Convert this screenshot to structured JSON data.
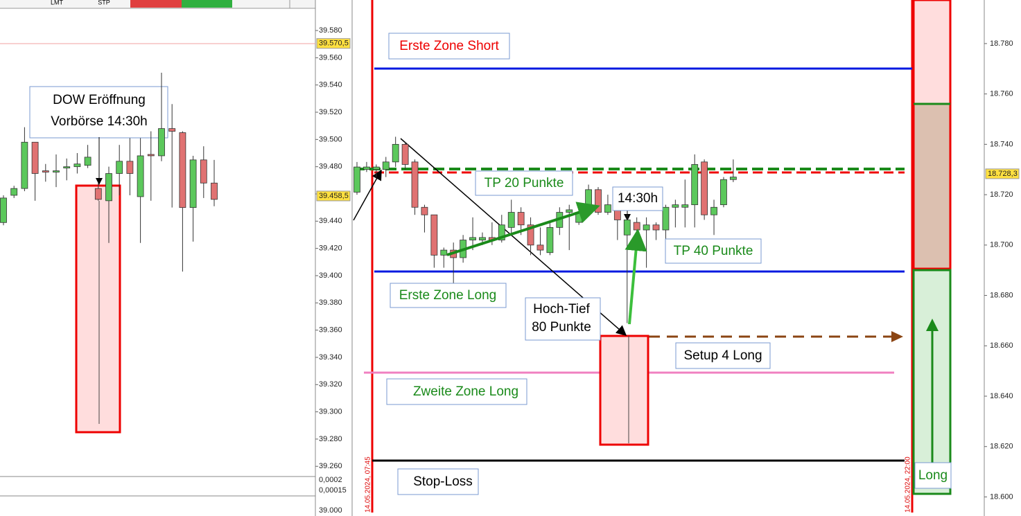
{
  "toolbar": {
    "labels": [
      "LMT",
      "STP"
    ]
  },
  "chart_data": [
    {
      "type": "candlestick",
      "ylim": [
        39.2525,
        39.6024
      ],
      "yticks": [
        {
          "value": 39.58,
          "label": "39.580"
        },
        {
          "value": 39.56,
          "label": "39.560"
        },
        {
          "value": 39.54,
          "label": "39.540"
        },
        {
          "value": 39.52,
          "label": "39.520"
        },
        {
          "value": 39.5,
          "label": "39.500"
        },
        {
          "value": 39.48,
          "label": "39.480"
        },
        {
          "value": 39.46,
          "label": "39.460"
        },
        {
          "value": 39.44,
          "label": "39.440"
        },
        {
          "value": 39.42,
          "label": "39.420"
        },
        {
          "value": 39.4,
          "label": "39.400"
        },
        {
          "value": 39.38,
          "label": "39.380"
        },
        {
          "value": 39.36,
          "label": "39.360"
        },
        {
          "value": 39.34,
          "label": "39.340"
        },
        {
          "value": 39.32,
          "label": "39.320"
        },
        {
          "value": 39.3,
          "label": "39.300"
        },
        {
          "value": 39.28,
          "label": "39.280"
        },
        {
          "value": 39.26,
          "label": "39.260"
        }
      ],
      "price_labels": [
        {
          "value": 39.5705,
          "label": "39.570,5"
        },
        {
          "value": 39.4585,
          "label": "39.458,5"
        }
      ],
      "subpane_labels": [
        "0,0002",
        "0,00015",
        "39.000"
      ],
      "open": [
        39.439,
        39.459,
        39.464,
        39.498,
        39.477,
        39.476,
        39.479,
        39.48,
        39.481,
        39.464,
        39.455,
        39.475,
        39.484,
        39.458,
        39.489,
        39.488,
        39.508,
        39.505,
        39.45,
        39.485,
        39.468
      ],
      "high": [
        39.459,
        39.466,
        39.509,
        39.498,
        39.482,
        39.489,
        39.486,
        39.49,
        39.496,
        39.468,
        39.48,
        39.496,
        39.501,
        39.501,
        39.506,
        39.549,
        39.526,
        39.506,
        39.488,
        39.495,
        39.485
      ],
      "low": [
        39.437,
        39.457,
        39.462,
        39.455,
        39.469,
        39.465,
        39.47,
        39.475,
        39.479,
        39.455,
        39.424,
        39.459,
        39.459,
        39.424,
        39.455,
        39.484,
        39.45,
        39.403,
        39.425,
        39.457,
        39.451
      ],
      "close": [
        39.457,
        39.464,
        39.498,
        39.475,
        39.476,
        39.477,
        39.48,
        39.482,
        39.487,
        39.456,
        39.475,
        39.484,
        39.475,
        39.488,
        39.488,
        39.508,
        39.506,
        39.45,
        39.485,
        39.468,
        39.456
      ],
      "annotations": [
        "DOW Eröffnung",
        "Vorbörse 14:30h"
      ]
    },
    {
      "type": "candlestick",
      "ylim": [
        18.5938,
        18.7973
      ],
      "yticks": [
        {
          "value": 18.78,
          "label": "18.780"
        },
        {
          "value": 18.76,
          "label": "18.760"
        },
        {
          "value": 18.74,
          "label": "18.740"
        },
        {
          "value": 18.72,
          "label": "18.720"
        },
        {
          "value": 18.7,
          "label": "18.700"
        },
        {
          "value": 18.68,
          "label": "18.680"
        },
        {
          "value": 18.66,
          "label": "18.660"
        },
        {
          "value": 18.64,
          "label": "18.640"
        },
        {
          "value": 18.62,
          "label": "18.620"
        },
        {
          "value": 18.6,
          "label": "18.600"
        }
      ],
      "price_labels": [
        {
          "value": 18.7283,
          "label": "18.728,3"
        }
      ],
      "open": [
        18.721,
        18.73,
        18.73,
        18.73,
        18.733,
        18.74,
        18.733,
        18.715,
        18.712,
        18.696,
        18.698,
        18.695,
        18.702,
        18.702,
        18.703,
        18.702,
        18.707,
        18.713,
        18.708,
        18.7,
        18.697,
        18.707,
        18.713,
        18.709,
        18.715,
        18.722,
        18.713,
        18.716,
        18.704,
        18.709,
        18.706,
        18.708,
        18.706,
        18.715,
        18.715,
        18.716,
        18.733,
        18.712,
        18.716,
        18.726
      ],
      "high": [
        18.733,
        18.733,
        18.732,
        18.735,
        18.743,
        18.741,
        18.734,
        18.716,
        18.712,
        18.699,
        18.701,
        18.704,
        18.711,
        18.705,
        18.709,
        18.712,
        18.718,
        18.715,
        18.711,
        18.707,
        18.709,
        18.715,
        18.716,
        18.715,
        18.724,
        18.723,
        18.72,
        18.717,
        18.712,
        18.711,
        18.711,
        18.709,
        18.716,
        18.718,
        18.726,
        18.736,
        18.734,
        18.718,
        18.727,
        18.734
      ],
      "low": [
        18.72,
        18.729,
        18.727,
        18.727,
        18.731,
        18.73,
        18.712,
        18.705,
        18.691,
        18.691,
        18.683,
        18.693,
        18.698,
        18.7,
        18.7,
        18.701,
        18.704,
        18.704,
        18.696,
        18.696,
        18.696,
        18.704,
        18.698,
        18.708,
        18.713,
        18.712,
        18.712,
        18.702,
        18.669,
        18.699,
        18.691,
        18.702,
        18.702,
        18.707,
        18.707,
        18.707,
        18.71,
        18.704,
        18.715,
        18.725
      ],
      "close": [
        18.731,
        18.731,
        18.731,
        18.733,
        18.74,
        18.732,
        18.715,
        18.712,
        18.696,
        18.698,
        18.695,
        18.702,
        18.703,
        18.703,
        18.702,
        18.708,
        18.713,
        18.708,
        18.7,
        18.698,
        18.707,
        18.713,
        18.714,
        18.713,
        18.722,
        18.713,
        18.716,
        18.71,
        18.71,
        18.706,
        18.708,
        18.706,
        18.715,
        18.716,
        18.716,
        18.732,
        18.712,
        18.715,
        18.726,
        18.727
      ],
      "session_labels": [
        "14.05.2024, 07:45",
        "14.05.2024, 22:00"
      ],
      "annotations": {
        "zone_short": "Erste Zone Short",
        "tp20": "TP 20 Punkte",
        "time": "14:30h",
        "tp40": "TP 40 Punkte",
        "zone_long": "Erste Zone Long",
        "range1": "Hoch-Tief",
        "range2": "80 Punkte",
        "setup": "Setup 4 Long",
        "zone_long2": "Zweite Zone Long",
        "stop": "Stop-Loss",
        "long": "Long"
      }
    }
  ]
}
